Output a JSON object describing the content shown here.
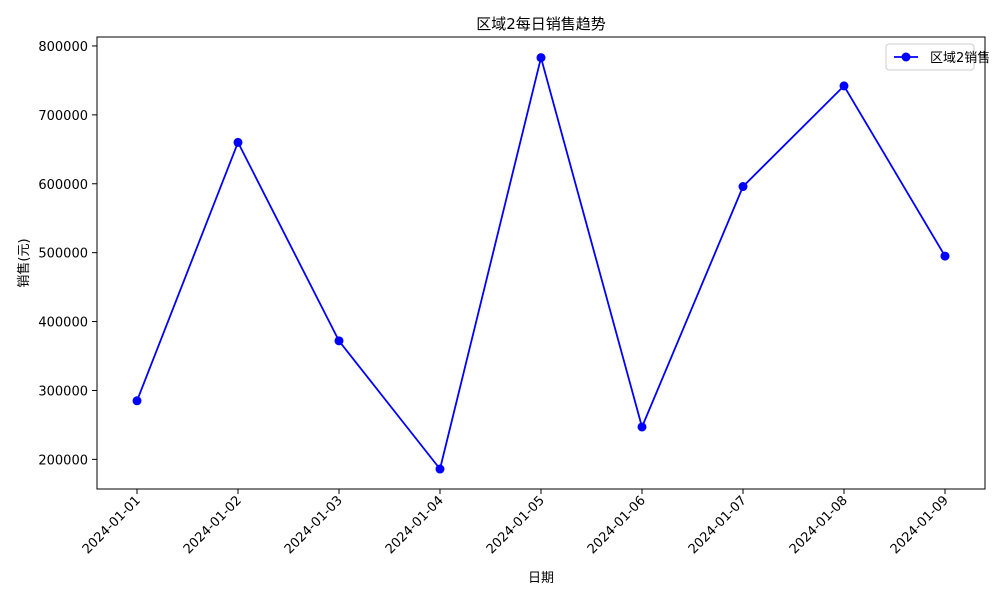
{
  "chart_data": {
    "type": "line",
    "title": "区域2每日销售趋势",
    "xlabel": "日期",
    "ylabel": "销售(元)",
    "x": [
      "2024-01-01",
      "2024-01-02",
      "2024-01-03",
      "2024-01-04",
      "2024-01-05",
      "2024-01-06",
      "2024-01-07",
      "2024-01-08",
      "2024-01-09"
    ],
    "series": [
      {
        "name": "区域2销售",
        "values": [
          285000,
          660000,
          372000,
          186000,
          783000,
          247000,
          596000,
          742000,
          495000
        ],
        "color": "#0000ff",
        "marker": "circle"
      }
    ],
    "yticks": [
      200000,
      300000,
      400000,
      500000,
      600000,
      700000,
      800000
    ],
    "ylim": [
      157000,
      813000
    ],
    "grid": false,
    "legend_position": "top-right"
  }
}
